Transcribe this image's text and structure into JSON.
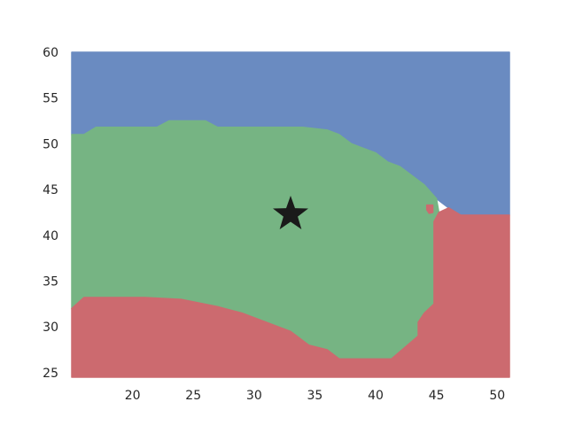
{
  "chart_data": {
    "type": "contourf",
    "xlim": [
      15,
      51
    ],
    "ylim": [
      24.5,
      60
    ],
    "xticks": [
      20,
      25,
      30,
      35,
      40,
      45,
      50
    ],
    "yticks": [
      25,
      30,
      35,
      40,
      45,
      50,
      55,
      60
    ],
    "xtick_labels": [
      "20",
      "25",
      "30",
      "35",
      "40",
      "45",
      "50"
    ],
    "ytick_labels": [
      "25",
      "30",
      "35",
      "40",
      "45",
      "50",
      "55",
      "60"
    ],
    "grid": false,
    "legend": "none",
    "regions": [
      {
        "class": "blue",
        "color": "#6a8bc1",
        "boundary": [
          [
            15,
            60
          ],
          [
            51,
            60
          ],
          [
            51,
            42.2
          ],
          [
            47,
            42.2
          ],
          [
            46,
            43
          ],
          [
            45,
            44
          ],
          [
            44,
            45.5
          ],
          [
            42,
            47.5
          ],
          [
            41,
            48
          ],
          [
            40,
            49
          ],
          [
            39,
            49.5
          ],
          [
            38,
            50
          ],
          [
            37,
            51
          ],
          [
            36,
            51.5
          ],
          [
            34,
            51.8
          ],
          [
            27,
            51.8
          ],
          [
            26,
            52.5
          ],
          [
            23,
            52.5
          ],
          [
            22,
            51.8
          ],
          [
            17,
            51.8
          ],
          [
            16,
            51
          ],
          [
            15,
            51
          ]
        ]
      },
      {
        "class": "green",
        "color": "#76b483",
        "boundary": [
          [
            15,
            51
          ],
          [
            16,
            51
          ],
          [
            17,
            51.8
          ],
          [
            22,
            51.8
          ],
          [
            23,
            52.5
          ],
          [
            26,
            52.5
          ],
          [
            27,
            51.8
          ],
          [
            34,
            51.8
          ],
          [
            36,
            51.5
          ],
          [
            37,
            51
          ],
          [
            38,
            50
          ],
          [
            39,
            49.5
          ],
          [
            40,
            49
          ],
          [
            41,
            48
          ],
          [
            42,
            47.5
          ],
          [
            44,
            45.5
          ],
          [
            45,
            44
          ],
          [
            45.2,
            42.5
          ],
          [
            44.8,
            41.5
          ],
          [
            44.8,
            32.5
          ],
          [
            44,
            31.5
          ],
          [
            43.5,
            30.5
          ],
          [
            43.5,
            29
          ],
          [
            41.3,
            26.5
          ],
          [
            37,
            26.5
          ],
          [
            36,
            27.5
          ],
          [
            34.5,
            28
          ],
          [
            33,
            29.5
          ],
          [
            31,
            30.5
          ],
          [
            29,
            31.5
          ],
          [
            27,
            32.2
          ],
          [
            24,
            33
          ],
          [
            21,
            33.2
          ],
          [
            16,
            33.2
          ],
          [
            15,
            32
          ]
        ]
      },
      {
        "class": "red",
        "color": "#cc6a6f",
        "boundary": [
          [
            15,
            32
          ],
          [
            16,
            33.2
          ],
          [
            21,
            33.2
          ],
          [
            24,
            33
          ],
          [
            27,
            32.2
          ],
          [
            29,
            31.5
          ],
          [
            31,
            30.5
          ],
          [
            33,
            29.5
          ],
          [
            34.5,
            28
          ],
          [
            36,
            27.5
          ],
          [
            37,
            26.5
          ],
          [
            41.3,
            26.5
          ],
          [
            43.5,
            29
          ],
          [
            43.5,
            30.5
          ],
          [
            44,
            31.5
          ],
          [
            44.8,
            32.5
          ],
          [
            44.8,
            41.5
          ],
          [
            45.2,
            42.5
          ],
          [
            46,
            43
          ],
          [
            47,
            42.2
          ],
          [
            51,
            42.2
          ],
          [
            51,
            24.5
          ],
          [
            15,
            24.5
          ]
        ]
      },
      {
        "class": "red-island",
        "color": "#cc6a6f",
        "boundary": [
          [
            44.2,
            43.3
          ],
          [
            44.7,
            43.3
          ],
          [
            44.7,
            42.5
          ],
          [
            44.4,
            42.4
          ],
          [
            44.2,
            42.8
          ]
        ]
      }
    ],
    "marker": {
      "shape": "star",
      "x": 33,
      "y": 42.3,
      "color": "#1a1a1a"
    }
  }
}
